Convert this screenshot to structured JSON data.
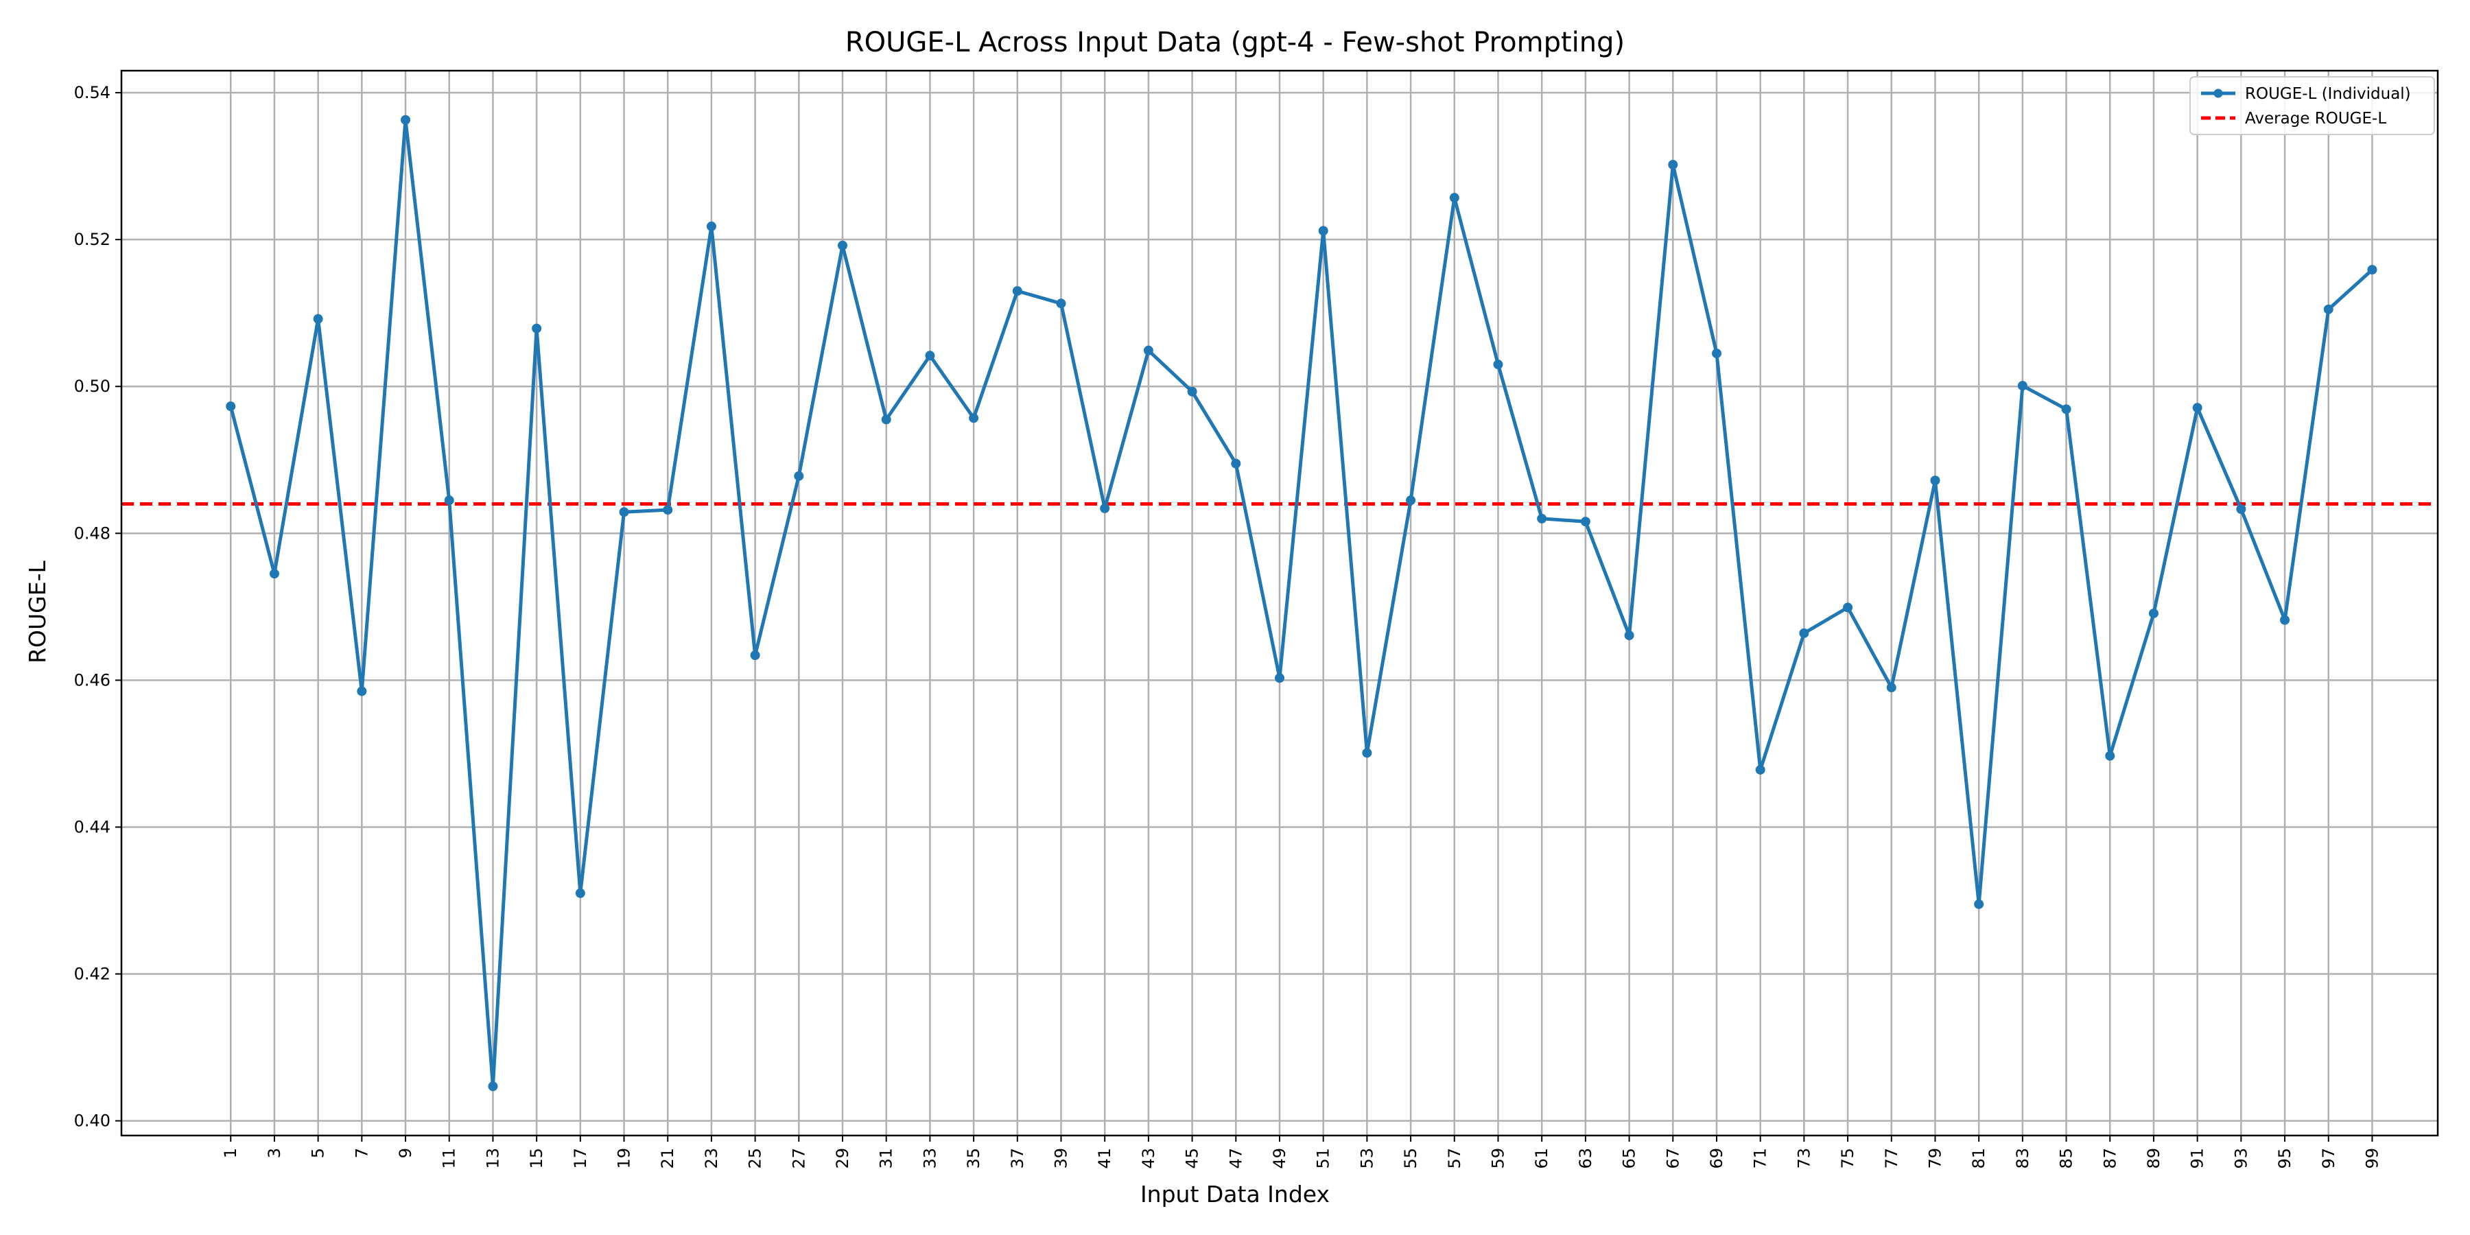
{
  "chart_data": {
    "type": "line",
    "title": "ROUGE-L Across Input Data (gpt-4 - Few-shot Prompting)",
    "xlabel": "Input Data Index",
    "ylabel": "ROUGE-L",
    "x_ticks": [
      1,
      3,
      5,
      7,
      9,
      11,
      13,
      15,
      17,
      19,
      21,
      23,
      25,
      27,
      29,
      31,
      33,
      35,
      37,
      39,
      41,
      43,
      45,
      47,
      49,
      51,
      53,
      55,
      57,
      59,
      61,
      63,
      65,
      67,
      69,
      71,
      73,
      75,
      77,
      79,
      81,
      83,
      85,
      87,
      89,
      91,
      93,
      95,
      97,
      99
    ],
    "y_ticks": [
      0.4,
      0.42,
      0.44,
      0.46,
      0.48,
      0.5,
      0.52,
      0.54
    ],
    "y_tick_labels": [
      "0.40",
      "0.42",
      "0.44",
      "0.46",
      "0.48",
      "0.50",
      "0.52",
      "0.54"
    ],
    "ylim": [
      0.398,
      0.543
    ],
    "xlim": [
      -4,
      102
    ],
    "grid": true,
    "legend_position": "top-right",
    "series": [
      {
        "name": "ROUGE-L (Individual)",
        "color": "#1f77b4",
        "style": "solid-with-markers",
        "x": [
          1,
          3,
          5,
          7,
          9,
          11,
          13,
          15,
          17,
          19,
          21,
          23,
          25,
          27,
          29,
          31,
          33,
          35,
          37,
          39,
          41,
          43,
          45,
          47,
          49,
          51,
          53,
          55,
          57,
          59,
          61,
          63,
          65,
          67,
          69,
          71,
          73,
          75,
          77,
          79,
          81,
          83,
          85,
          87,
          89,
          91,
          93,
          95,
          97,
          99
        ],
        "values": [
          0.4973,
          0.4745,
          0.5092,
          0.4585,
          0.5363,
          0.4845,
          0.4047,
          0.5079,
          0.431,
          0.4829,
          0.4832,
          0.5218,
          0.4634,
          0.4878,
          0.5192,
          0.4955,
          0.5042,
          0.4957,
          0.513,
          0.5113,
          0.4834,
          0.5049,
          0.4993,
          0.4895,
          0.4603,
          0.5212,
          0.4501,
          0.4845,
          0.5257,
          0.503,
          0.482,
          0.4816,
          0.4661,
          0.5302,
          0.5045,
          0.4478,
          0.4664,
          0.4699,
          0.459,
          0.4872,
          0.4295,
          0.5001,
          0.4969,
          0.4497,
          0.4691,
          0.4971,
          0.4833,
          0.4682,
          0.5105,
          0.5159
        ]
      },
      {
        "name": "Average ROUGE-L",
        "color": "#ff0000",
        "style": "dashed",
        "value": 0.484
      }
    ]
  }
}
